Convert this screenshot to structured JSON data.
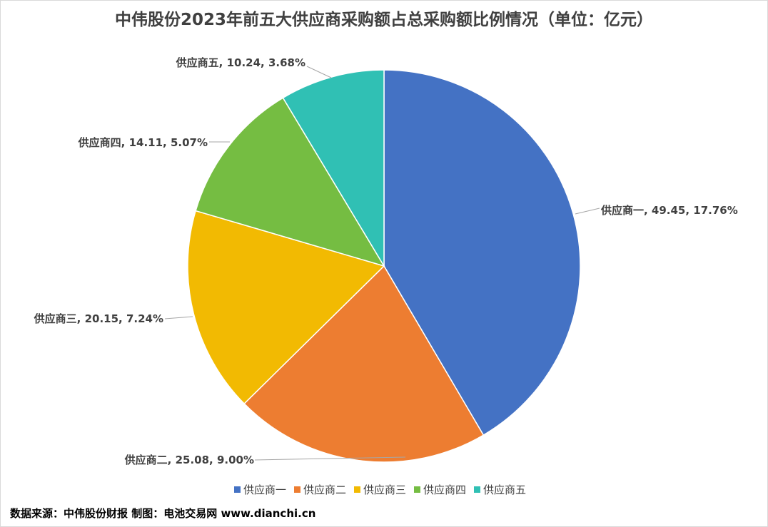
{
  "chart_data": {
    "type": "pie",
    "title": "中伟股份2023年前五大供应商采购额占总采购额比例情况（单位：亿元）",
    "slices": [
      {
        "name": "供应商一",
        "value": 49.45,
        "percent": "17.76%",
        "color": "#4472C4"
      },
      {
        "name": "供应商二",
        "value": 25.08,
        "percent": "9.00%",
        "color": "#ED7D31"
      },
      {
        "name": "供应商三",
        "value": 20.15,
        "percent": "7.24%",
        "color": "#F2BA02"
      },
      {
        "name": "供应商四",
        "value": 14.11,
        "percent": "5.07%",
        "color": "#75BD42"
      },
      {
        "name": "供应商五",
        "value": 10.24,
        "percent": "3.68%",
        "color": "#30C0B4"
      }
    ],
    "legend_position": "bottom"
  },
  "source_note": "数据来源：中伟股份财报 制图：电池交易网 www.dianchi.cn"
}
